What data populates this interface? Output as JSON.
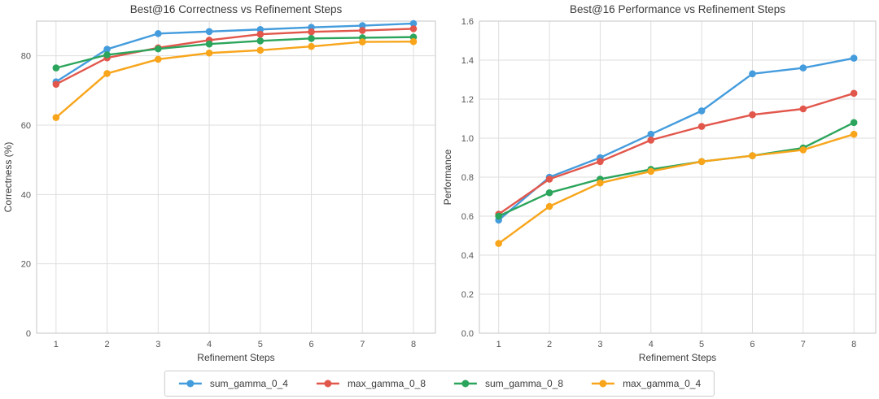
{
  "figure": {
    "background": "#ffffff",
    "grid_color": "#dedede",
    "spine_color": "#cfcfcf",
    "title_color": "#3a3a3a",
    "tick_color": "#555555"
  },
  "chart_data": [
    {
      "type": "line",
      "title": "Best@16 Correctness vs Refinement Steps",
      "xlabel": "Refinement Steps",
      "ylabel": "Correctness (%)",
      "x": [
        1,
        2,
        3,
        4,
        5,
        6,
        7,
        8
      ],
      "xlim": [
        0.62,
        8.43
      ],
      "ylim": [
        0,
        90
      ],
      "xticks": [
        1,
        2,
        3,
        4,
        5,
        6,
        7,
        8
      ],
      "xtick_labels": [
        "1",
        "2",
        "3",
        "4",
        "5",
        "6",
        "7",
        "8"
      ],
      "yticks": [
        0,
        20,
        40,
        60,
        80
      ],
      "ytick_labels": [
        "0",
        "20",
        "40",
        "60",
        "80"
      ],
      "grid": true,
      "legend_position": "figure-bottom",
      "series": [
        {
          "name": "sum_gamma_0_4",
          "color": "#449CDD",
          "values": [
            72.5,
            81.9,
            86.4,
            87.0,
            87.6,
            88.2,
            88.7,
            89.3
          ]
        },
        {
          "name": "max_gamma_0_8",
          "color": "#E2574C",
          "values": [
            71.8,
            79.4,
            82.3,
            84.5,
            86.2,
            86.9,
            87.3,
            87.8
          ]
        },
        {
          "name": "sum_gamma_0_8",
          "color": "#2CA55C",
          "values": [
            76.5,
            80.3,
            82.0,
            83.4,
            84.3,
            85.0,
            85.2,
            85.4
          ]
        },
        {
          "name": "max_gamma_0_4",
          "color": "#F8A51B",
          "values": [
            62.2,
            74.9,
            79.0,
            80.8,
            81.6,
            82.7,
            84.0,
            84.1
          ]
        }
      ]
    },
    {
      "type": "line",
      "title": "Best@16 Performance vs Refinement Steps",
      "xlabel": "Refinement Steps",
      "ylabel": "Performance",
      "x": [
        1,
        2,
        3,
        4,
        5,
        6,
        7,
        8
      ],
      "xlim": [
        0.62,
        8.43
      ],
      "ylim": [
        0,
        1.6
      ],
      "xticks": [
        1,
        2,
        3,
        4,
        5,
        6,
        7,
        8
      ],
      "xtick_labels": [
        "1",
        "2",
        "3",
        "4",
        "5",
        "6",
        "7",
        "8"
      ],
      "yticks": [
        0,
        0.2,
        0.4,
        0.6,
        0.8,
        1.0,
        1.2,
        1.4,
        1.6
      ],
      "ytick_labels": [
        "0.0",
        "0.2",
        "0.4",
        "0.6",
        "0.8",
        "1.0",
        "1.2",
        "1.4",
        "1.6"
      ],
      "grid": true,
      "legend_position": "figure-bottom",
      "series": [
        {
          "name": "sum_gamma_0_4",
          "color": "#449CDD",
          "values": [
            0.58,
            0.8,
            0.9,
            1.02,
            1.14,
            1.33,
            1.36,
            1.41
          ]
        },
        {
          "name": "max_gamma_0_8",
          "color": "#E2574C",
          "values": [
            0.61,
            0.79,
            0.88,
            0.99,
            1.06,
            1.12,
            1.15,
            1.23
          ]
        },
        {
          "name": "sum_gamma_0_8",
          "color": "#2CA55C",
          "values": [
            0.6,
            0.72,
            0.79,
            0.84,
            0.88,
            0.91,
            0.95,
            1.08
          ]
        },
        {
          "name": "max_gamma_0_4",
          "color": "#F8A51B",
          "values": [
            0.46,
            0.65,
            0.77,
            0.83,
            0.88,
            0.91,
            0.94,
            1.02
          ]
        }
      ]
    }
  ],
  "legend": {
    "border_color": "#cccccc",
    "entries": [
      {
        "label": "sum_gamma_0_4",
        "color": "#449CDD"
      },
      {
        "label": "max_gamma_0_8",
        "color": "#E2574C"
      },
      {
        "label": "sum_gamma_0_8",
        "color": "#2CA55C"
      },
      {
        "label": "max_gamma_0_4",
        "color": "#F8A51B"
      }
    ]
  }
}
